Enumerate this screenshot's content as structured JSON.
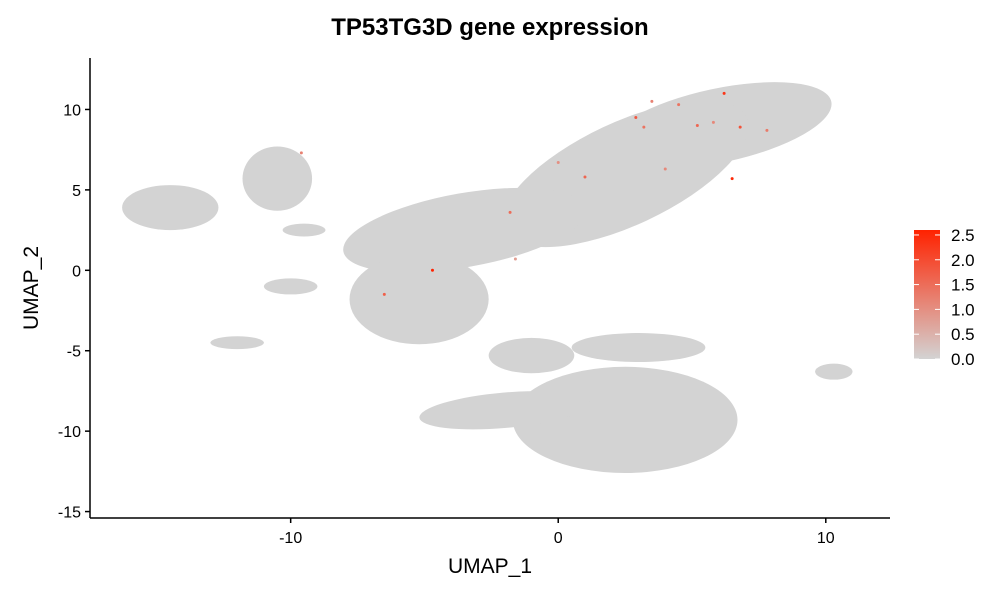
{
  "chart_data": {
    "type": "scatter",
    "title": "TP53TG3D gene expression",
    "xlabel": "UMAP_1",
    "ylabel": "UMAP_2",
    "xlim": [
      -17.5,
      12.4
    ],
    "ylim": [
      -15.4,
      13.2
    ],
    "xticks": [
      -10,
      0,
      10
    ],
    "yticks": [
      -15,
      -10,
      -5,
      0,
      5,
      10
    ],
    "xtick_labels": [
      "-10",
      "0",
      "10"
    ],
    "ytick_labels": [
      "-15",
      "-10",
      "-5",
      "0",
      "5",
      "10"
    ],
    "grid": false,
    "colors": {
      "low": "#d3d3d3",
      "high": "#ff2200"
    },
    "legend": {
      "position": "right",
      "ticks": [
        0.0,
        0.5,
        1.0,
        1.5,
        2.0,
        2.5
      ],
      "labels": [
        "0.0",
        "0.5",
        "1.0",
        "1.5",
        "2.0",
        "2.5"
      ],
      "range": [
        0,
        2.6
      ]
    },
    "clusters": [
      {
        "cx": 6.0,
        "cy": 9.0,
        "rx": 4.3,
        "ry": 2.3,
        "rot": -12
      },
      {
        "cx": 2.5,
        "cy": 6.0,
        "rx": 5.0,
        "ry": 3.2,
        "rot": -25
      },
      {
        "cx": -3.5,
        "cy": 2.5,
        "rx": 4.6,
        "ry": 2.3,
        "rot": -10
      },
      {
        "cx": -5.2,
        "cy": -1.8,
        "rx": 2.6,
        "ry": 2.8,
        "rot": 0
      },
      {
        "cx": 2.5,
        "cy": -9.3,
        "rx": 4.2,
        "ry": 3.3,
        "rot": 0
      },
      {
        "cx": -2.0,
        "cy": -8.7,
        "rx": 3.2,
        "ry": 1.1,
        "rot": -5
      },
      {
        "cx": -1.0,
        "cy": -5.3,
        "rx": 1.6,
        "ry": 1.1,
        "rot": 0
      },
      {
        "cx": 3.0,
        "cy": -4.8,
        "rx": 2.5,
        "ry": 0.9,
        "rot": 0
      },
      {
        "cx": -14.5,
        "cy": 3.9,
        "rx": 1.8,
        "ry": 1.4,
        "rot": 0
      },
      {
        "cx": -10.5,
        "cy": 5.7,
        "rx": 1.3,
        "ry": 2.0,
        "rot": 0
      },
      {
        "cx": -12.0,
        "cy": -4.5,
        "rx": 1.0,
        "ry": 0.4,
        "rot": 0
      },
      {
        "cx": 10.3,
        "cy": -6.3,
        "rx": 0.7,
        "ry": 0.5,
        "rot": 0
      },
      {
        "cx": -10.0,
        "cy": -1.0,
        "rx": 1.0,
        "ry": 0.5,
        "rot": 0
      },
      {
        "cx": -9.5,
        "cy": 2.5,
        "rx": 0.8,
        "ry": 0.4,
        "rot": 0
      }
    ],
    "expressed_points": [
      {
        "x": 6.2,
        "y": 11.0,
        "value": 2.3
      },
      {
        "x": 3.5,
        "y": 10.5,
        "value": 1.2
      },
      {
        "x": 4.5,
        "y": 10.3,
        "value": 1.4
      },
      {
        "x": 2.9,
        "y": 9.5,
        "value": 1.8
      },
      {
        "x": 3.2,
        "y": 8.9,
        "value": 1.4
      },
      {
        "x": 5.2,
        "y": 9.0,
        "value": 1.6
      },
      {
        "x": 5.8,
        "y": 9.2,
        "value": 1.1
      },
      {
        "x": 6.8,
        "y": 8.9,
        "value": 1.9
      },
      {
        "x": 7.8,
        "y": 8.7,
        "value": 1.3
      },
      {
        "x": 6.5,
        "y": 5.7,
        "value": 2.5
      },
      {
        "x": 4.0,
        "y": 6.3,
        "value": 1.1
      },
      {
        "x": 1.0,
        "y": 5.8,
        "value": 1.6
      },
      {
        "x": 0.0,
        "y": 6.7,
        "value": 1.0
      },
      {
        "x": -1.8,
        "y": 3.6,
        "value": 1.5
      },
      {
        "x": -4.7,
        "y": 0.0,
        "value": 2.6
      },
      {
        "x": -6.5,
        "y": -1.5,
        "value": 1.7
      },
      {
        "x": -1.6,
        "y": 0.7,
        "value": 0.8
      },
      {
        "x": -9.6,
        "y": 7.3,
        "value": 1.2
      }
    ]
  }
}
